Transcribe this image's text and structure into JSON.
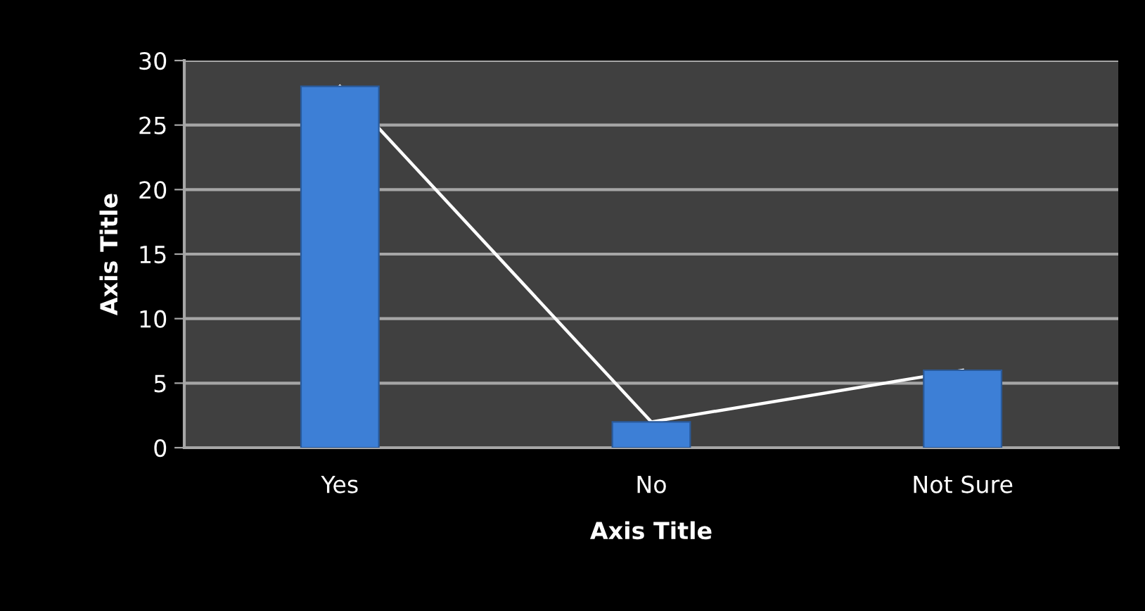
{
  "chart_data": {
    "type": "bar",
    "xlabel": "Axis Title",
    "ylabel": "Axis Title",
    "categories": [
      "Yes",
      "No",
      "Not Sure"
    ],
    "series": [
      {
        "color": "#3d7fd6",
        "values": [
          28,
          2,
          6
        ]
      },
      {
        "type": "line",
        "color": "#ffffff",
        "values": [
          28,
          2,
          6
        ]
      }
    ],
    "ylim": [
      0,
      30
    ],
    "yticks": [
      0,
      5,
      10,
      15,
      20,
      25,
      30
    ],
    "grid": "y",
    "legend": false
  }
}
